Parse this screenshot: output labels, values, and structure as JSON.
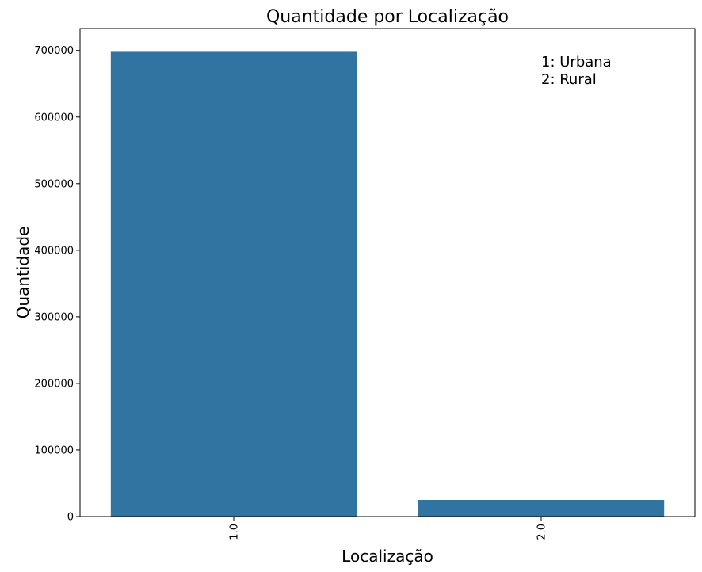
{
  "chart_data": {
    "type": "bar",
    "title": "Quantidade por Localização",
    "xlabel": "Localização",
    "ylabel": "Quantidade",
    "categories": [
      "1.0",
      "2.0"
    ],
    "values": [
      698000,
      25000
    ],
    "ylim": [
      0,
      733000
    ],
    "yticks": [
      "0",
      "100000",
      "200000",
      "300000",
      "400000",
      "500000",
      "600000",
      "700000"
    ],
    "annotation_lines": [
      "1: Urbana",
      "2: Rural"
    ],
    "grid": false,
    "legend": "none",
    "bar_color": "#3274a1"
  }
}
